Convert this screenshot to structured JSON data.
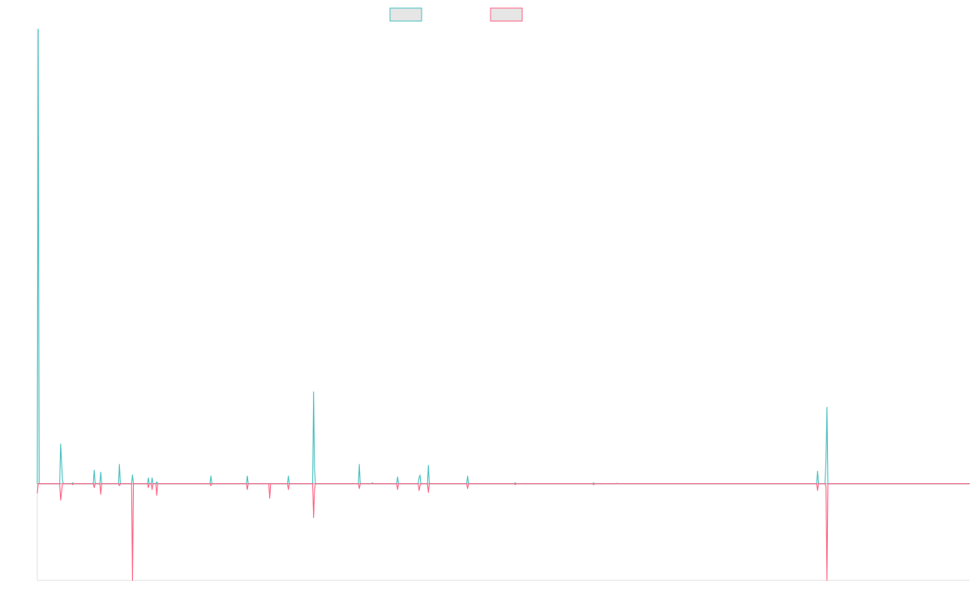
{
  "colors": {
    "series_a": "#4bc0c0",
    "series_b": "#ff6384",
    "legend_fill": "#e6e6e6",
    "zero_line": "#9aa0a6",
    "axis": "#e0e0e0"
  },
  "chart_data": {
    "type": "line",
    "title": "",
    "xlabel": "",
    "ylabel": "",
    "legend_position": "top",
    "grid": false,
    "x_count": 1000,
    "ylim": [
      -100,
      470
    ],
    "series": [
      {
        "color": "#4bc0c0",
        "points": [
          [
            0,
            0
          ],
          [
            1,
            470
          ],
          [
            2,
            0
          ],
          [
            24,
            0
          ],
          [
            25,
            41
          ],
          [
            27,
            3
          ],
          [
            28,
            0
          ],
          [
            37,
            0
          ],
          [
            38,
            1
          ],
          [
            39,
            0
          ],
          [
            60,
            0
          ],
          [
            61,
            14
          ],
          [
            62,
            0
          ],
          [
            67,
            0
          ],
          [
            68,
            12
          ],
          [
            69,
            0
          ],
          [
            87,
            0
          ],
          [
            88,
            20
          ],
          [
            89,
            0
          ],
          [
            101,
            0
          ],
          [
            102,
            9
          ],
          [
            103,
            0
          ],
          [
            118,
            0
          ],
          [
            119,
            6
          ],
          [
            120,
            0
          ],
          [
            122,
            0
          ],
          [
            123,
            6
          ],
          [
            124,
            0
          ],
          [
            127,
            0
          ],
          [
            128,
            2
          ],
          [
            129,
            0
          ],
          [
            185,
            0
          ],
          [
            186,
            8
          ],
          [
            187,
            0
          ],
          [
            224,
            0
          ],
          [
            225,
            8
          ],
          [
            226,
            0
          ],
          [
            268,
            0
          ],
          [
            269,
            8
          ],
          [
            270,
            0
          ],
          [
            295,
            0
          ],
          [
            296,
            95
          ],
          [
            297,
            15
          ],
          [
            298,
            0
          ],
          [
            344,
            0
          ],
          [
            345,
            20
          ],
          [
            346,
            0
          ],
          [
            358,
            0
          ],
          [
            359,
            1
          ],
          [
            360,
            0
          ],
          [
            385,
            0
          ],
          [
            386,
            7
          ],
          [
            387,
            0
          ],
          [
            408,
            0
          ],
          [
            409,
            6
          ],
          [
            410,
            9
          ],
          [
            411,
            0
          ],
          [
            418,
            0
          ],
          [
            419,
            19
          ],
          [
            420,
            0
          ],
          [
            460,
            0
          ],
          [
            461,
            8
          ],
          [
            462,
            0
          ],
          [
            511,
            0
          ],
          [
            512,
            1
          ],
          [
            513,
            0
          ],
          [
            595,
            0
          ],
          [
            596,
            1
          ],
          [
            597,
            0
          ],
          [
            620,
            0
          ],
          [
            621,
            0.5
          ],
          [
            622,
            0
          ],
          [
            835,
            0
          ],
          [
            836,
            13
          ],
          [
            837,
            0
          ],
          [
            844,
            0
          ],
          [
            845,
            25
          ],
          [
            846,
            79
          ],
          [
            847,
            0
          ],
          [
            999,
            0
          ]
        ]
      },
      {
        "color": "#ff6384",
        "points": [
          [
            0,
            -10
          ],
          [
            1,
            0
          ],
          [
            24,
            0
          ],
          [
            25,
            -17
          ],
          [
            26,
            -8
          ],
          [
            27,
            0
          ],
          [
            37,
            0
          ],
          [
            38,
            -1
          ],
          [
            39,
            0
          ],
          [
            60,
            0
          ],
          [
            61,
            -4
          ],
          [
            62,
            0
          ],
          [
            67,
            0
          ],
          [
            68,
            -11
          ],
          [
            69,
            0
          ],
          [
            87,
            0
          ],
          [
            88,
            -2
          ],
          [
            89,
            0
          ],
          [
            101,
            0
          ],
          [
            102,
            -100
          ],
          [
            103,
            0
          ],
          [
            118,
            0
          ],
          [
            119,
            -4
          ],
          [
            120,
            0
          ],
          [
            122,
            0
          ],
          [
            123,
            -6
          ],
          [
            124,
            0
          ],
          [
            127,
            0
          ],
          [
            128,
            -12
          ],
          [
            129,
            0
          ],
          [
            185,
            0
          ],
          [
            186,
            -2
          ],
          [
            187,
            0
          ],
          [
            224,
            0
          ],
          [
            225,
            -6
          ],
          [
            226,
            0
          ],
          [
            248,
            0
          ],
          [
            249,
            -15
          ],
          [
            250,
            0
          ],
          [
            268,
            0
          ],
          [
            269,
            -6
          ],
          [
            270,
            0
          ],
          [
            295,
            0
          ],
          [
            296,
            -35
          ],
          [
            297,
            -6
          ],
          [
            298,
            0
          ],
          [
            344,
            0
          ],
          [
            345,
            -5
          ],
          [
            346,
            0
          ],
          [
            385,
            0
          ],
          [
            386,
            -6
          ],
          [
            387,
            0
          ],
          [
            408,
            0
          ],
          [
            409,
            -7
          ],
          [
            410,
            -2
          ],
          [
            411,
            0
          ],
          [
            418,
            0
          ],
          [
            419,
            -9
          ],
          [
            420,
            0
          ],
          [
            460,
            0
          ],
          [
            461,
            -5
          ],
          [
            462,
            0
          ],
          [
            511,
            0
          ],
          [
            512,
            -1
          ],
          [
            513,
            0
          ],
          [
            595,
            0
          ],
          [
            596,
            -1
          ],
          [
            597,
            0
          ],
          [
            835,
            0
          ],
          [
            836,
            -7
          ],
          [
            837,
            0
          ],
          [
            844,
            0
          ],
          [
            845,
            -3
          ],
          [
            846,
            -100
          ],
          [
            847,
            0
          ],
          [
            999,
            0
          ]
        ]
      }
    ]
  }
}
